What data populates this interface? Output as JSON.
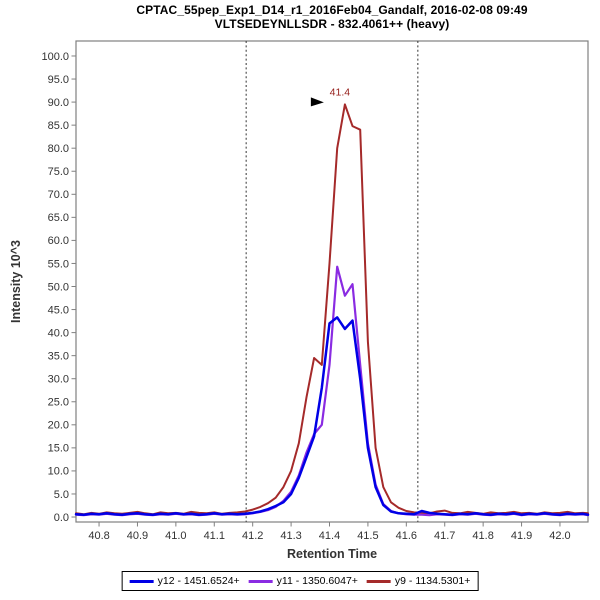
{
  "title": {
    "line1": "CPTAC_55pep_Exp1_D14_r1_2016Feb04_Gandalf, 2016-02-08 09:49",
    "line2": "VLTSEDEYNLLSDR - 832.4061++ (heavy)"
  },
  "chart_data": {
    "type": "line",
    "title": "CPTAC_55pep_Exp1_D14_r1_2016Feb04_Gandalf, 2016-02-08 09:49 / VLTSEDEYNLLSDR - 832.4061++ (heavy)",
    "xlabel": "Retention Time",
    "ylabel": "Intensity 10^3",
    "xlim": [
      40.74,
      42.073
    ],
    "ylim": [
      -1.08,
      103.25
    ],
    "xticks": [
      40.8,
      40.9,
      41.0,
      41.1,
      41.2,
      41.3,
      41.4,
      41.5,
      41.6,
      41.7,
      41.8,
      41.9,
      42.0
    ],
    "yticks": [
      0.0,
      5.0,
      10.0,
      15.0,
      20.0,
      25.0,
      30.0,
      35.0,
      40.0,
      45.0,
      50.0,
      55.0,
      60.0,
      65.0,
      70.0,
      75.0,
      80.0,
      85.0,
      90.0,
      95.0,
      100.0
    ],
    "grid": false,
    "legend_position": "bottom",
    "x_start": 40.74,
    "x_step": 0.02,
    "peak_boundaries": [
      41.183,
      41.63
    ],
    "annotation": {
      "text": "41.4",
      "x": 41.44,
      "y": 89.5,
      "color": "#96201c"
    },
    "series": [
      {
        "name": "y12 - 1451.6524+",
        "color": "#0000e6",
        "stroke_width": 2.5,
        "values": [
          0.6,
          0.5,
          0.7,
          0.6,
          0.8,
          0.6,
          0.5,
          0.7,
          0.8,
          0.6,
          0.5,
          0.7,
          0.6,
          0.8,
          0.6,
          0.7,
          0.5,
          0.6,
          0.8,
          0.6,
          0.7,
          0.6,
          0.7,
          0.9,
          1.2,
          1.7,
          2.4,
          3.2,
          5.0,
          8.5,
          13.0,
          17.5,
          28.0,
          42.0,
          43.3,
          40.8,
          42.6,
          30.0,
          15.0,
          6.5,
          2.6,
          1.2,
          0.8,
          0.7,
          0.6,
          1.3,
          0.9,
          0.7,
          0.6,
          0.5,
          0.7,
          0.6,
          0.8,
          0.6,
          0.5,
          0.7,
          0.6,
          0.8,
          0.5,
          0.7,
          0.6,
          0.8,
          0.6,
          0.5,
          0.7,
          0.6,
          0.7,
          0.5
        ]
      },
      {
        "name": "y11 - 1350.6047+",
        "color": "#8a2be2",
        "stroke_width": 2.2,
        "values": [
          0.5,
          0.4,
          0.6,
          0.5,
          0.7,
          0.5,
          0.4,
          0.6,
          0.7,
          0.5,
          0.4,
          0.6,
          0.5,
          0.7,
          0.5,
          0.6,
          0.4,
          0.5,
          0.7,
          0.5,
          0.6,
          0.5,
          0.6,
          0.8,
          1.1,
          1.5,
          2.2,
          3.5,
          5.5,
          9.0,
          14.0,
          18.0,
          20.0,
          33.0,
          54.3,
          48.0,
          50.5,
          33.0,
          16.0,
          7.0,
          2.8,
          1.3,
          0.8,
          0.6,
          0.5,
          0.5,
          0.4,
          0.6,
          0.5,
          0.4,
          0.6,
          0.5,
          0.7,
          0.5,
          0.4,
          0.6,
          0.5,
          0.7,
          0.4,
          0.6,
          0.5,
          0.7,
          0.5,
          0.4,
          0.6,
          0.5,
          0.6,
          0.4
        ]
      },
      {
        "name": "y9 - 1134.5301+",
        "color": "#a52a2a",
        "stroke_width": 2.0,
        "values": [
          0.8,
          0.6,
          0.9,
          0.7,
          1.0,
          0.8,
          0.7,
          0.9,
          1.1,
          0.8,
          0.6,
          1.0,
          0.8,
          0.9,
          0.7,
          1.1,
          0.9,
          0.8,
          1.0,
          0.7,
          0.9,
          1.0,
          1.2,
          1.6,
          2.2,
          3.0,
          4.2,
          6.5,
          10.0,
          16.0,
          26.0,
          34.5,
          33.0,
          55.0,
          80.0,
          89.5,
          84.8,
          84.0,
          38.0,
          15.0,
          6.5,
          3.2,
          2.0,
          1.3,
          1.0,
          0.9,
          0.8,
          1.2,
          1.4,
          0.9,
          0.8,
          1.1,
          0.9,
          0.7,
          1.0,
          0.8,
          0.9,
          1.1,
          0.8,
          0.9,
          0.7,
          1.0,
          0.8,
          0.9,
          1.1,
          0.8,
          0.9,
          0.8
        ]
      }
    ]
  },
  "legend": {
    "entries": [
      {
        "label": "y12 - 1451.6524+",
        "color": "#0000e6"
      },
      {
        "label": "y11 - 1350.6047+",
        "color": "#8a2be2"
      },
      {
        "label": "y9 - 1134.5301+",
        "color": "#a52a2a"
      }
    ]
  },
  "style_colors": {
    "frame": "#808080",
    "tick": "#808080",
    "tick_label": "#333333",
    "axis_title": "#333333",
    "boundary_line": "#333333",
    "annotation_arrow": "#000000"
  }
}
